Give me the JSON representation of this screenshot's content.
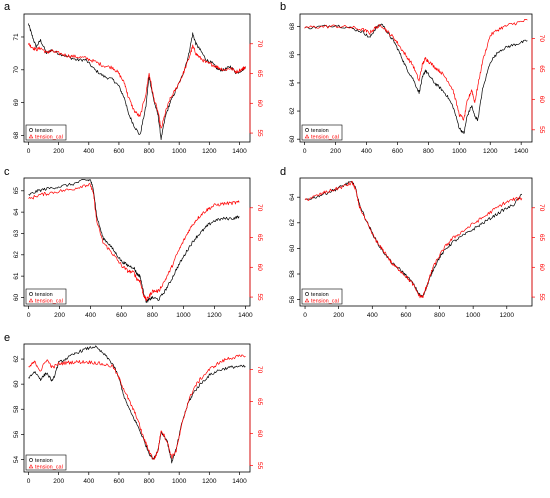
{
  "colors": {
    "black_series": "#000000",
    "red_series": "#ff0000",
    "axis": "#000000",
    "background": "#ffffff"
  },
  "chart_data": [
    {
      "panel_label": "a",
      "type": "line",
      "x_ticks": [
        0,
        200,
        400,
        600,
        800,
        1000,
        1200,
        1400
      ],
      "y_left_ticks": [
        68,
        69,
        70,
        71
      ],
      "y_right_ticks": [
        55,
        60,
        65,
        70
      ],
      "xlim": [
        -30,
        1470
      ],
      "ylim_left": [
        67.8,
        71.7
      ],
      "ylim_right": [
        53.5,
        75
      ],
      "legend": {
        "placement": "bottom-left",
        "entries": [
          "tension",
          "tension_cal"
        ]
      },
      "series": [
        {
          "name": "tension",
          "axis": "left",
          "color": "#000000",
          "x": [
            0,
            20,
            50,
            80,
            120,
            150,
            200,
            260,
            320,
            380,
            440,
            500,
            560,
            600,
            640,
            660,
            700,
            740,
            780,
            800,
            830,
            860,
            880,
            910,
            940,
            980,
            1020,
            1060,
            1090,
            1110,
            1140,
            1180,
            1220,
            1260,
            1300,
            1340,
            1380,
            1420,
            1440
          ],
          "y": [
            71.4,
            71.1,
            70.7,
            70.9,
            70.5,
            70.6,
            70.5,
            70.4,
            70.3,
            70.3,
            70.0,
            69.8,
            69.7,
            69.5,
            69.1,
            68.7,
            68.3,
            68.0,
            68.9,
            69.8,
            69.1,
            68.6,
            67.9,
            68.6,
            69.0,
            69.4,
            69.8,
            70.4,
            71.1,
            70.8,
            70.6,
            70.3,
            70.2,
            70.0,
            70.0,
            70.1,
            69.9,
            70.0,
            70.1
          ]
        },
        {
          "name": "tension_cal",
          "axis": "right",
          "color": "#ff0000",
          "x": [
            0,
            20,
            50,
            80,
            120,
            150,
            200,
            260,
            320,
            380,
            440,
            500,
            560,
            600,
            640,
            660,
            700,
            740,
            780,
            800,
            830,
            860,
            880,
            910,
            940,
            980,
            1020,
            1060,
            1090,
            1110,
            1140,
            1180,
            1220,
            1260,
            1300,
            1340,
            1380,
            1420,
            1440
          ],
          "y": [
            70.0,
            69.5,
            69.0,
            69.3,
            68.5,
            68.8,
            68.4,
            68.0,
            67.8,
            67.6,
            67.0,
            66.3,
            66.0,
            65.0,
            63.2,
            61.2,
            58.8,
            57.7,
            61.7,
            65.1,
            61.0,
            58.5,
            55.6,
            58.6,
            60.7,
            62.5,
            64.6,
            67.2,
            69.6,
            68.4,
            67.6,
            66.8,
            66.5,
            66.0,
            65.6,
            65.9,
            65.3,
            65.8,
            66.1
          ]
        }
      ]
    },
    {
      "panel_label": "b",
      "type": "line",
      "x_ticks": [
        0,
        200,
        400,
        600,
        800,
        1000,
        1200,
        1400
      ],
      "y_left_ticks": [
        60,
        62,
        64,
        66,
        68
      ],
      "y_right_ticks": [
        55,
        60,
        65,
        70
      ],
      "xlim": [
        -30,
        1470
      ],
      "ylim_left": [
        59.8,
        68.9
      ],
      "ylim_right": [
        53,
        74
      ],
      "legend": {
        "placement": "bottom-left",
        "entries": [
          "tension",
          "tension_cal"
        ]
      },
      "series": [
        {
          "name": "tension",
          "axis": "left",
          "color": "#000000",
          "x": [
            0,
            100,
            200,
            300,
            380,
            420,
            460,
            500,
            540,
            580,
            620,
            660,
            700,
            740,
            760,
            780,
            800,
            840,
            880,
            920,
            960,
            1000,
            1030,
            1050,
            1080,
            1100,
            1120,
            1150,
            1200,
            1260,
            1320,
            1380,
            1440
          ],
          "y": [
            67.9,
            68.0,
            68.1,
            67.9,
            67.6,
            67.2,
            67.9,
            68.2,
            67.5,
            66.9,
            66.0,
            65.0,
            64.3,
            63.3,
            64.3,
            64.9,
            64.6,
            64.0,
            63.6,
            63.1,
            62.3,
            60.8,
            60.4,
            61.6,
            62.4,
            61.6,
            61.4,
            63.5,
            65.5,
            66.3,
            66.6,
            66.8,
            67.0
          ]
        },
        {
          "name": "tension_cal",
          "axis": "right",
          "color": "#ff0000",
          "x": [
            0,
            100,
            200,
            300,
            380,
            420,
            460,
            500,
            540,
            580,
            620,
            660,
            700,
            740,
            760,
            780,
            800,
            840,
            880,
            920,
            960,
            1000,
            1030,
            1050,
            1080,
            1100,
            1120,
            1150,
            1200,
            1260,
            1320,
            1380,
            1440
          ],
          "y": [
            71.8,
            71.9,
            72.0,
            71.8,
            71.4,
            70.9,
            71.8,
            72.1,
            71.0,
            70.0,
            68.5,
            67.0,
            65.6,
            63.0,
            65.6,
            66.7,
            66.3,
            65.3,
            64.5,
            63.3,
            61.5,
            57.5,
            56.7,
            59.5,
            61.6,
            59.5,
            62.2,
            66.2,
            70.5,
            71.6,
            72.2,
            72.6,
            73.0
          ]
        }
      ]
    },
    {
      "panel_label": "c",
      "type": "line",
      "x_ticks": [
        0,
        200,
        400,
        600,
        800,
        1000,
        1200,
        1400
      ],
      "y_left_ticks": [
        60,
        61,
        62,
        63,
        64,
        65
      ],
      "y_right_ticks": [
        55,
        60,
        65,
        70
      ],
      "xlim": [
        -30,
        1430
      ],
      "ylim_left": [
        59.6,
        65.6
      ],
      "ylim_right": [
        53.5,
        75
      ],
      "legend": {
        "placement": "bottom-left",
        "entries": [
          "tension",
          "tension_cal"
        ]
      },
      "series": [
        {
          "name": "tension",
          "axis": "left",
          "color": "#000000",
          "x": [
            0,
            60,
            120,
            200,
            280,
            360,
            400,
            420,
            440,
            480,
            520,
            560,
            600,
            640,
            680,
            700,
            720,
            740,
            760,
            780,
            800,
            840,
            880,
            920,
            960,
            1000,
            1040,
            1080,
            1120,
            1160,
            1200,
            1260,
            1320,
            1360
          ],
          "y": [
            64.8,
            65.0,
            65.1,
            65.2,
            65.3,
            65.5,
            65.5,
            65.0,
            63.8,
            62.8,
            62.5,
            62.1,
            61.7,
            61.5,
            61.4,
            61.1,
            61.0,
            60.3,
            59.8,
            59.9,
            60.0,
            59.9,
            60.3,
            60.8,
            61.4,
            61.9,
            62.4,
            62.8,
            63.1,
            63.4,
            63.6,
            63.7,
            63.7,
            63.8
          ]
        },
        {
          "name": "tension_cal",
          "axis": "right",
          "color": "#ff0000",
          "x": [
            0,
            60,
            120,
            200,
            280,
            360,
            400,
            420,
            440,
            480,
            520,
            560,
            600,
            640,
            680,
            700,
            720,
            740,
            760,
            780,
            800,
            840,
            880,
            920,
            960,
            1000,
            1040,
            1080,
            1120,
            1160,
            1200,
            1260,
            1320,
            1360
          ],
          "y": [
            71.4,
            72.1,
            72.4,
            72.8,
            73.1,
            73.8,
            73.8,
            72.1,
            67.7,
            64.2,
            63.0,
            61.7,
            60.3,
            59.4,
            59.1,
            58.0,
            57.7,
            55.5,
            54.5,
            55.2,
            56.0,
            56.0,
            57.8,
            59.8,
            62.3,
            64.4,
            66.4,
            67.9,
            69.0,
            69.8,
            70.4,
            70.7,
            70.8,
            70.9
          ]
        }
      ]
    },
    {
      "panel_label": "d",
      "type": "line",
      "x_ticks": [
        0,
        200,
        400,
        600,
        800,
        1000,
        1200
      ],
      "y_left_ticks": [
        56,
        58,
        60,
        62,
        64
      ],
      "y_right_ticks": [
        55,
        60,
        65,
        70
      ],
      "xlim": [
        -30,
        1350
      ],
      "ylim_left": [
        55.5,
        65.5
      ],
      "ylim_right": [
        53.5,
        75
      ],
      "legend": {
        "placement": "bottom-left",
        "entries": [
          "tension",
          "tension_cal"
        ]
      },
      "series": [
        {
          "name": "tension",
          "axis": "left",
          "color": "#000000",
          "x": [
            0,
            60,
            120,
            180,
            240,
            280,
            300,
            320,
            360,
            400,
            440,
            480,
            520,
            560,
            600,
            640,
            680,
            700,
            720,
            740,
            760,
            800,
            840,
            880,
            940,
            1000,
            1060,
            1120,
            1180,
            1240,
            1290
          ],
          "y": [
            63.8,
            64.0,
            64.3,
            64.6,
            65.0,
            65.2,
            64.7,
            63.6,
            62.3,
            61.2,
            60.2,
            59.5,
            58.8,
            58.4,
            57.9,
            57.3,
            56.4,
            56.2,
            56.9,
            57.6,
            58.3,
            59.3,
            60.0,
            60.5,
            61.0,
            61.5,
            62.0,
            62.5,
            63.0,
            63.4,
            64.2
          ]
        },
        {
          "name": "tension_cal",
          "axis": "right",
          "color": "#ff0000",
          "x": [
            0,
            60,
            120,
            180,
            240,
            280,
            300,
            320,
            360,
            400,
            440,
            480,
            520,
            560,
            600,
            640,
            680,
            700,
            720,
            740,
            760,
            800,
            840,
            880,
            940,
            1000,
            1060,
            1120,
            1180,
            1240,
            1290
          ],
          "y": [
            71.3,
            71.9,
            72.6,
            73.1,
            73.7,
            74.2,
            73.2,
            70.5,
            67.9,
            65.6,
            63.7,
            62.3,
            60.5,
            59.6,
            58.5,
            57.2,
            55.2,
            55.0,
            56.6,
            58.2,
            59.9,
            62.0,
            63.7,
            64.9,
            66.1,
            67.3,
            68.4,
            69.6,
            70.7,
            71.4,
            71.6
          ]
        }
      ]
    },
    {
      "panel_label": "e",
      "type": "line",
      "x_ticks": [
        0,
        200,
        400,
        600,
        800,
        1000,
        1200,
        1400
      ],
      "y_left_ticks": [
        54,
        56,
        58,
        60,
        62
      ],
      "y_right_ticks": [
        55,
        60,
        65,
        70
      ],
      "xlim": [
        -30,
        1470
      ],
      "ylim_left": [
        53.0,
        63.2
      ],
      "ylim_right": [
        54,
        74
      ],
      "legend": {
        "placement": "bottom-left",
        "entries": [
          "tension",
          "tension_cal"
        ]
      },
      "series": [
        {
          "name": "tension",
          "axis": "left",
          "color": "#000000",
          "x": [
            0,
            40,
            80,
            120,
            160,
            200,
            260,
            320,
            380,
            440,
            500,
            560,
            600,
            640,
            680,
            720,
            760,
            800,
            830,
            860,
            880,
            920,
            950,
            980,
            1020,
            1060,
            1100,
            1140,
            1200,
            1260,
            1320,
            1380,
            1440
          ],
          "y": [
            60.5,
            61.0,
            60.4,
            60.9,
            60.2,
            61.7,
            62.1,
            62.5,
            62.8,
            63.0,
            62.4,
            61.6,
            60.5,
            58.8,
            57.7,
            56.8,
            55.7,
            54.5,
            54.0,
            54.8,
            56.2,
            55.5,
            53.8,
            54.8,
            57.0,
            58.5,
            59.4,
            60.0,
            60.7,
            61.1,
            61.3,
            61.4,
            61.4
          ]
        },
        {
          "name": "tension_cal",
          "axis": "right",
          "color": "#ff0000",
          "x": [
            0,
            40,
            80,
            120,
            160,
            200,
            260,
            320,
            380,
            440,
            500,
            560,
            600,
            640,
            680,
            720,
            760,
            800,
            830,
            860,
            880,
            920,
            950,
            980,
            1020,
            1060,
            1100,
            1140,
            1200,
            1260,
            1320,
            1380,
            1440
          ],
          "y": [
            70.3,
            71.2,
            69.8,
            71.6,
            70.3,
            70.9,
            71.1,
            71.2,
            71.2,
            71.1,
            70.8,
            70.5,
            68.7,
            66.6,
            64.5,
            62.5,
            59.6,
            57.3,
            55.9,
            57.3,
            60.6,
            58.8,
            56.3,
            57.3,
            61.6,
            65.0,
            67.2,
            68.5,
            70.0,
            71.0,
            71.7,
            72.0,
            72.1
          ]
        }
      ]
    }
  ]
}
